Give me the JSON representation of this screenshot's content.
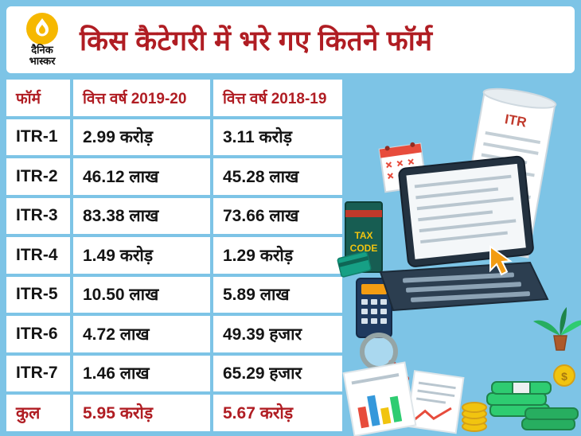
{
  "colors": {
    "background": "#7dc4e6",
    "panel": "#ffffff",
    "accent_red": "#b01d23",
    "text": "#141414",
    "logo_yellow": "#f6b800"
  },
  "header": {
    "logo_line1": "दैनिक",
    "logo_line2": "भास्कर",
    "title": "किस कैटेगरी में भरे गए कितने फॉर्म"
  },
  "table": {
    "columns": [
      "फॉर्म",
      "वित्त वर्ष 2019-20",
      "वित्त वर्ष 2018-19"
    ],
    "rows": [
      {
        "form": "ITR-1",
        "fy1920": "2.99 करोड़",
        "fy1819": "3.11 करोड़",
        "total": false
      },
      {
        "form": "ITR-2",
        "fy1920": "46.12 लाख",
        "fy1819": "45.28 लाख",
        "total": false
      },
      {
        "form": "ITR-3",
        "fy1920": "83.38 लाख",
        "fy1819": "73.66 लाख",
        "total": false
      },
      {
        "form": "ITR-4",
        "fy1920": "1.49 करोड़",
        "fy1819": "1.29 करोड़",
        "total": false
      },
      {
        "form": "ITR-5",
        "fy1920": "10.50 लाख",
        "fy1819": "5.89 लाख",
        "total": false
      },
      {
        "form": "ITR-6",
        "fy1920": "4.72 लाख",
        "fy1819": "49.39 हजार",
        "total": false
      },
      {
        "form": "ITR-7",
        "fy1920": "1.46 लाख",
        "fy1819": "65.29 हजार",
        "total": false
      },
      {
        "form": "कुल",
        "fy1920": "5.95 करोड़",
        "fy1819": "5.67 करोड़",
        "total": true
      }
    ]
  },
  "illustration": {
    "itr_label": "ITR",
    "tax_book_line1": "TAX",
    "tax_book_line2": "CODE",
    "coin_symbol": "$"
  },
  "chart_data": {
    "type": "table",
    "title": "किस कैटेगरी में भरे गए कितने फॉर्म",
    "columns": [
      "फॉर्म",
      "वित्त वर्ष 2019-20",
      "वित्त वर्ष 2018-19"
    ],
    "rows": [
      [
        "ITR-1",
        "2.99 करोड़",
        "3.11 करोड़"
      ],
      [
        "ITR-2",
        "46.12 लाख",
        "45.28 लाख"
      ],
      [
        "ITR-3",
        "83.38 लाख",
        "73.66 लाख"
      ],
      [
        "ITR-4",
        "1.49 करोड़",
        "1.29 करोड़"
      ],
      [
        "ITR-5",
        "10.50 लाख",
        "5.89 लाख"
      ],
      [
        "ITR-6",
        "4.72 लाख",
        "49.39 हजार"
      ],
      [
        "ITR-7",
        "1.46 लाख",
        "65.29 हजार"
      ],
      [
        "कुल",
        "5.95 करोड़",
        "5.67 करोड़"
      ]
    ]
  }
}
